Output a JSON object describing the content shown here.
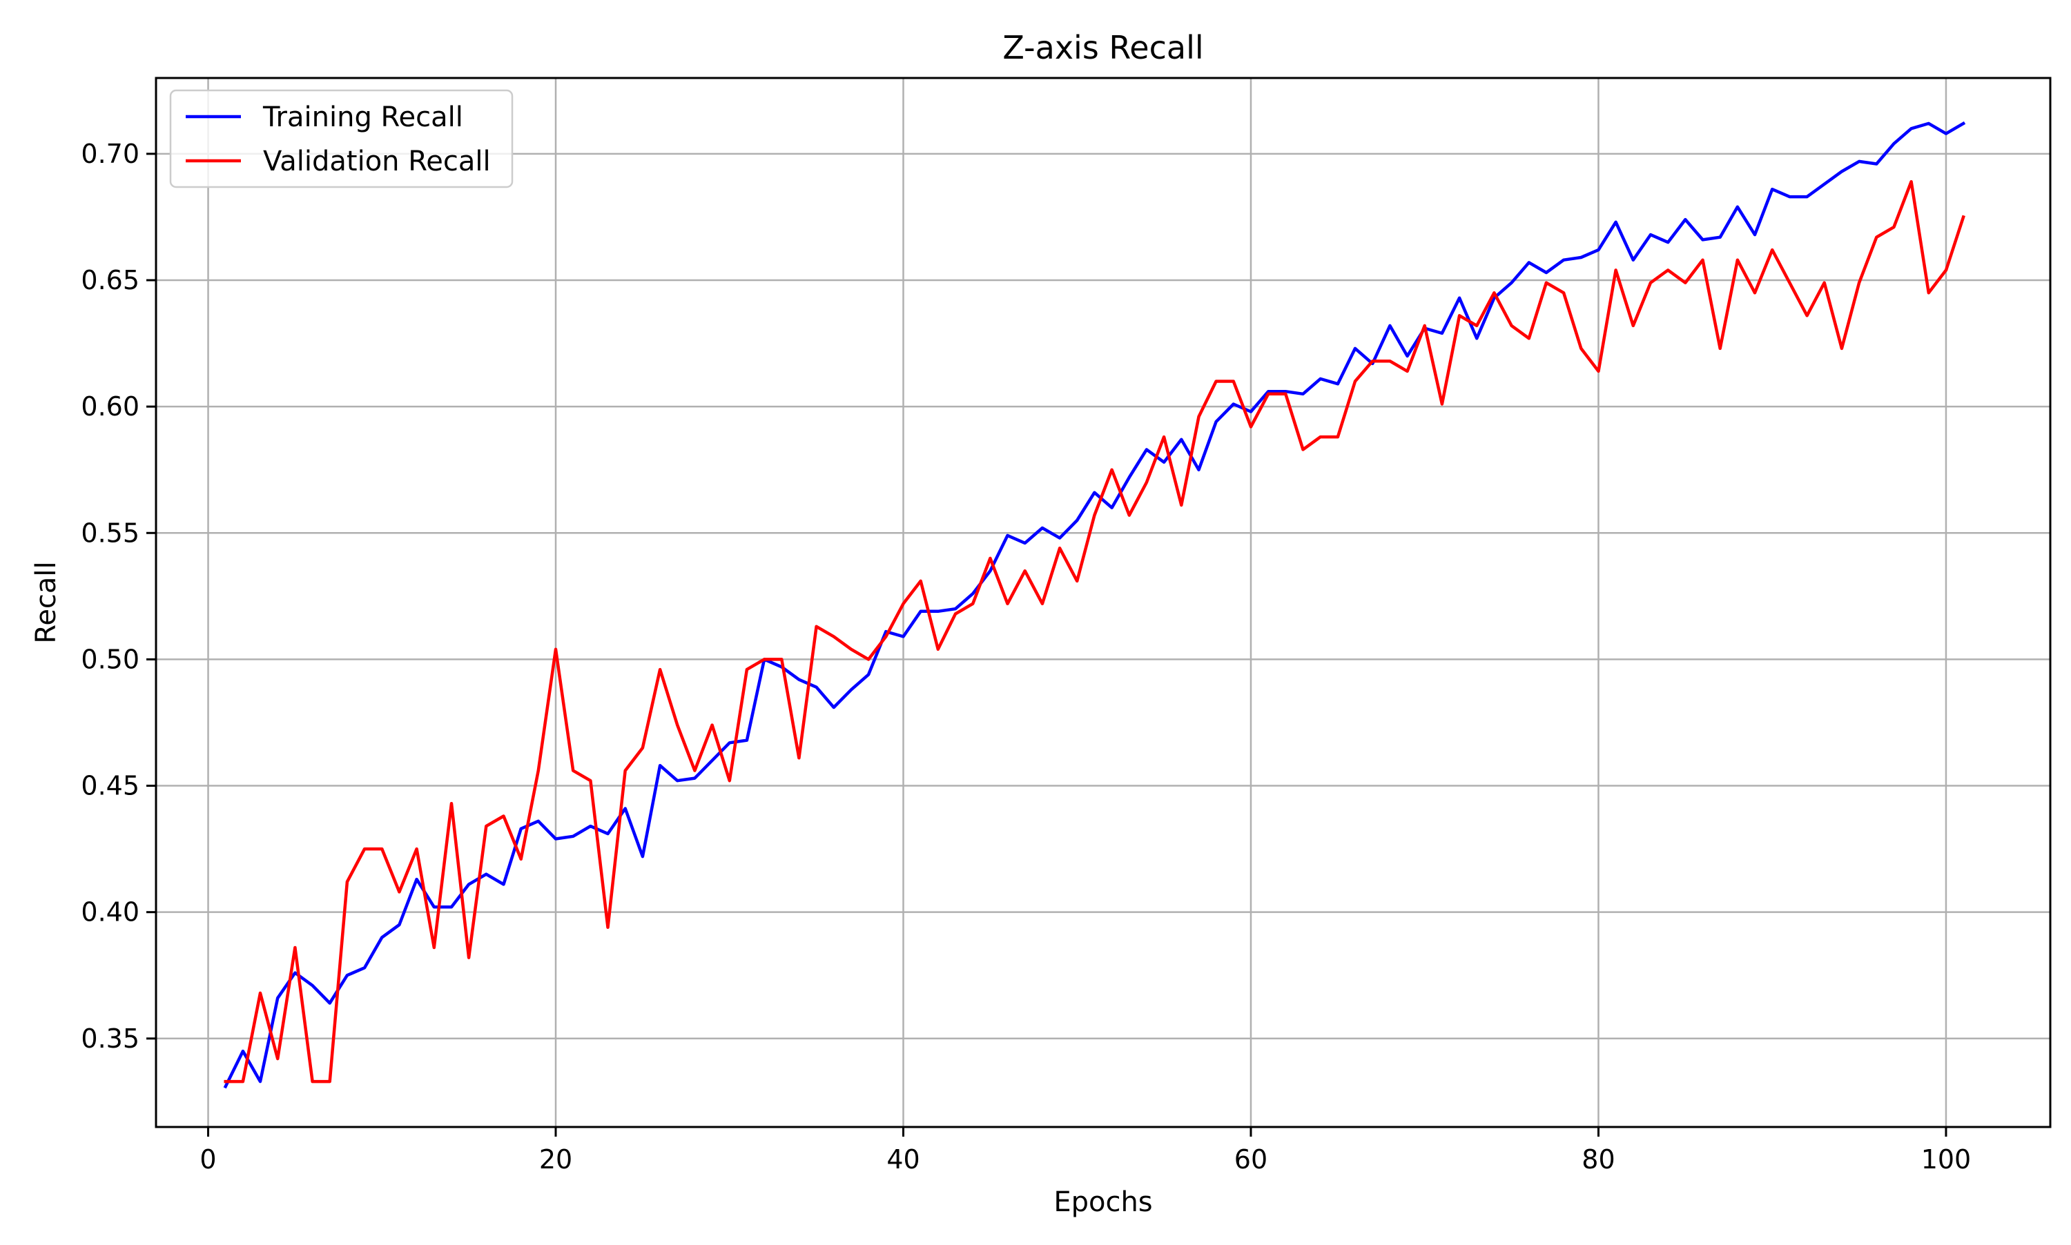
{
  "chart_data": {
    "type": "line",
    "title": "Z-axis Recall",
    "xlabel": "Epochs",
    "ylabel": "Recall",
    "xlim": [
      -3.0,
      106.0
    ],
    "ylim": [
      0.315,
      0.73
    ],
    "xticks": [
      0,
      20,
      40,
      60,
      80,
      100
    ],
    "yticks": [
      0.35,
      0.4,
      0.45,
      0.5,
      0.55,
      0.6,
      0.65,
      0.7
    ],
    "xtick_labels": [
      "0",
      "20",
      "40",
      "60",
      "80",
      "100"
    ],
    "ytick_labels": [
      "0.35",
      "0.40",
      "0.45",
      "0.50",
      "0.55",
      "0.60",
      "0.65",
      "0.70"
    ],
    "grid": true,
    "legend_position": "upper-left",
    "x": [
      1,
      2,
      3,
      4,
      5,
      6,
      7,
      8,
      9,
      10,
      11,
      12,
      13,
      14,
      15,
      16,
      17,
      18,
      19,
      20,
      21,
      22,
      23,
      24,
      25,
      26,
      27,
      28,
      29,
      30,
      31,
      32,
      33,
      34,
      35,
      36,
      37,
      38,
      39,
      40,
      41,
      42,
      43,
      44,
      45,
      46,
      47,
      48,
      49,
      50,
      51,
      52,
      53,
      54,
      55,
      56,
      57,
      58,
      59,
      60,
      61,
      62,
      63,
      64,
      65,
      66,
      67,
      68,
      69,
      70,
      71,
      72,
      73,
      74,
      75,
      76,
      77,
      78,
      79,
      80,
      81,
      82,
      83,
      84,
      85,
      86,
      87,
      88,
      89,
      90,
      91,
      92,
      93,
      94,
      95,
      96,
      97,
      98,
      99,
      100,
      101
    ],
    "series": [
      {
        "name": "Training Recall",
        "color": "#0000ff",
        "values": [
          0.331,
          0.345,
          0.333,
          0.366,
          0.376,
          0.371,
          0.364,
          0.375,
          0.378,
          0.39,
          0.395,
          0.413,
          0.402,
          0.402,
          0.411,
          0.415,
          0.411,
          0.433,
          0.436,
          0.429,
          0.43,
          0.434,
          0.431,
          0.441,
          0.422,
          0.458,
          0.452,
          0.453,
          0.46,
          0.467,
          0.468,
          0.5,
          0.497,
          0.492,
          0.489,
          0.481,
          0.488,
          0.494,
          0.511,
          0.509,
          0.519,
          0.519,
          0.52,
          0.526,
          0.535,
          0.549,
          0.546,
          0.552,
          0.548,
          0.555,
          0.566,
          0.56,
          0.572,
          0.583,
          0.578,
          0.587,
          0.575,
          0.594,
          0.601,
          0.598,
          0.606,
          0.606,
          0.605,
          0.611,
          0.609,
          0.623,
          0.617,
          0.632,
          0.62,
          0.631,
          0.629,
          0.643,
          0.627,
          0.643,
          0.649,
          0.657,
          0.653,
          0.658,
          0.659,
          0.662,
          0.673,
          0.658,
          0.668,
          0.665,
          0.674,
          0.666,
          0.667,
          0.679,
          0.668,
          0.686,
          0.683,
          0.683,
          0.688,
          0.693,
          0.697,
          0.696,
          0.704,
          0.71,
          0.712,
          0.708,
          0.712
        ]
      },
      {
        "name": "Validation Recall",
        "color": "#ff0000",
        "values": [
          0.333,
          0.333,
          0.368,
          0.342,
          0.386,
          0.333,
          0.333,
          0.412,
          0.425,
          0.425,
          0.408,
          0.425,
          0.386,
          0.443,
          0.382,
          0.434,
          0.438,
          0.421,
          0.456,
          0.504,
          0.456,
          0.452,
          0.394,
          0.456,
          0.465,
          0.496,
          0.474,
          0.456,
          0.474,
          0.452,
          0.496,
          0.5,
          0.5,
          0.461,
          0.513,
          0.509,
          0.504,
          0.5,
          0.509,
          0.522,
          0.531,
          0.504,
          0.518,
          0.522,
          0.54,
          0.522,
          0.535,
          0.522,
          0.544,
          0.531,
          0.557,
          0.575,
          0.557,
          0.57,
          0.588,
          0.561,
          0.596,
          0.61,
          0.61,
          0.592,
          0.605,
          0.605,
          0.583,
          0.588,
          0.588,
          0.61,
          0.618,
          0.618,
          0.614,
          0.632,
          0.601,
          0.636,
          0.632,
          0.645,
          0.632,
          0.627,
          0.649,
          0.645,
          0.623,
          0.614,
          0.654,
          0.632,
          0.649,
          0.654,
          0.649,
          0.658,
          0.623,
          0.658,
          0.645,
          0.662,
          0.649,
          0.636,
          0.649,
          0.623,
          0.649,
          0.667,
          0.671,
          0.689,
          0.645,
          0.654,
          0.675
        ]
      }
    ]
  }
}
